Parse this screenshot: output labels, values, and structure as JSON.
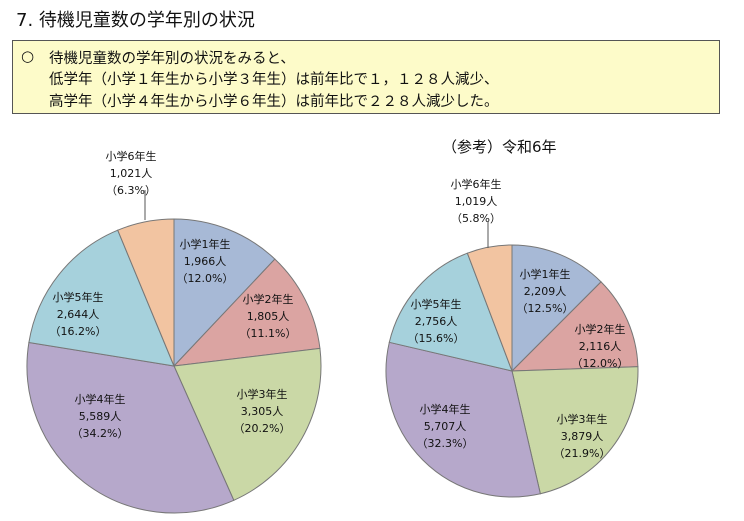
{
  "header": {
    "title": "7. 待機児童数の学年別の状況"
  },
  "summary": {
    "bullet": "○",
    "lines": [
      "待機児童数の学年別の状況をみると、",
      "低学年（小学１年生から小学３年生）は前年比で１，１２８人減少、",
      "高学年（小学４年生から小学６年生）は前年比で２２８人減少した。"
    ]
  },
  "chart_data": [
    {
      "type": "pie",
      "title": "",
      "categories": [
        "小学1年生",
        "小学2年生",
        "小学3年生",
        "小学4年生",
        "小学5年生",
        "小学6年生"
      ],
      "values": [
        1966,
        1805,
        3305,
        5589,
        2644,
        1021
      ],
      "value_labels": [
        "1,966人",
        "1,805人",
        "3,305人",
        "5,589人",
        "2,644人",
        "1,021人"
      ],
      "percent_labels": [
        "（12.0%）",
        "（11.1%）",
        "（20.2%）",
        "（34.2%）",
        "（16.2%）",
        "（6.3%）"
      ],
      "colors": [
        "#a7b9d6",
        "#dba4a2",
        "#cad8a6",
        "#b6a8cb",
        "#a6d1dc",
        "#f2c4a1"
      ],
      "start": "12 o'clock",
      "direction": "clockwise"
    },
    {
      "type": "pie",
      "title": "（参考）令和6年",
      "categories": [
        "小学1年生",
        "小学2年生",
        "小学3年生",
        "小学4年生",
        "小学5年生",
        "小学6年生"
      ],
      "values": [
        2209,
        2116,
        3879,
        5707,
        2756,
        1019
      ],
      "value_labels": [
        "2,209人",
        "2,116人",
        "3,879人",
        "5,707人",
        "2,756人",
        "1,019人"
      ],
      "percent_labels": [
        "（12.5%）",
        "（12.0%）",
        "（21.9%）",
        "（32.3%）",
        "（15.6%）",
        "（5.8%）"
      ],
      "colors": [
        "#a7b9d6",
        "#dba4a2",
        "#cad8a6",
        "#b6a8cb",
        "#a6d1dc",
        "#f2c4a1"
      ],
      "start": "12 o'clock",
      "direction": "clockwise"
    }
  ]
}
